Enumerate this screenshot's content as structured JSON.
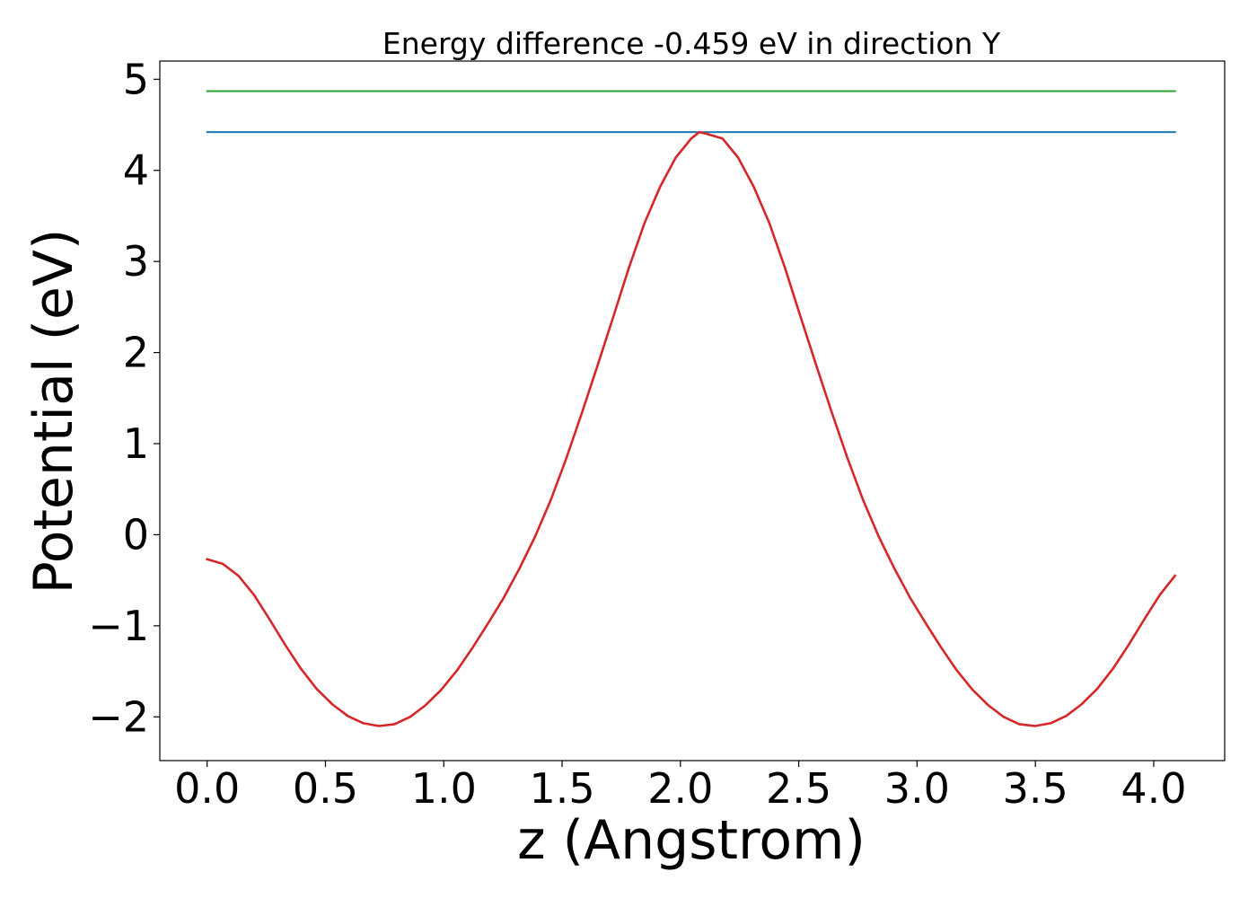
{
  "chart_data": {
    "type": "line",
    "title": "Energy difference -0.459 eV in direction Y",
    "xlabel": "z (Angstrom)",
    "ylabel": "Potential (eV)",
    "xlim": [
      -0.2,
      4.3
    ],
    "ylim": [
      -2.48,
      5.2
    ],
    "grid": false,
    "x_ticks": [
      {
        "value": 0.0,
        "label": "0.0"
      },
      {
        "value": 0.5,
        "label": "0.5"
      },
      {
        "value": 1.0,
        "label": "1.0"
      },
      {
        "value": 1.5,
        "label": "1.5"
      },
      {
        "value": 2.0,
        "label": "2.0"
      },
      {
        "value": 2.5,
        "label": "2.5"
      },
      {
        "value": 3.0,
        "label": "3.0"
      },
      {
        "value": 3.5,
        "label": "3.5"
      },
      {
        "value": 4.0,
        "label": "4.0"
      }
    ],
    "y_ticks": [
      {
        "value": -2,
        "label": "−2"
      },
      {
        "value": -1,
        "label": "−1"
      },
      {
        "value": 0,
        "label": "0"
      },
      {
        "value": 1,
        "label": "1"
      },
      {
        "value": 2,
        "label": "2"
      },
      {
        "value": 3,
        "label": "3"
      },
      {
        "value": 4,
        "label": "4"
      },
      {
        "value": 5,
        "label": "5"
      }
    ],
    "series": [
      {
        "color": "#2ca02c",
        "x": [
          0.0,
          4.09
        ],
        "values": [
          4.87,
          4.87
        ]
      },
      {
        "color": "#1f77b4",
        "x": [
          0.0,
          4.09
        ],
        "values": [
          4.42,
          4.42
        ]
      },
      {
        "color": "#d62728",
        "x": [
          0.0,
          0.066,
          0.132,
          0.198,
          0.264,
          0.33,
          0.396,
          0.462,
          0.528,
          0.594,
          0.66,
          0.726,
          0.792,
          0.858,
          0.924,
          0.99,
          1.056,
          1.122,
          1.188,
          1.254,
          1.32,
          1.386,
          1.452,
          1.518,
          1.584,
          1.65,
          1.716,
          1.782,
          1.848,
          1.914,
          1.98,
          2.046,
          2.08,
          2.112,
          2.178,
          2.244,
          2.31,
          2.376,
          2.442,
          2.508,
          2.574,
          2.64,
          2.706,
          2.772,
          2.838,
          2.904,
          2.97,
          3.036,
          3.102,
          3.168,
          3.234,
          3.3,
          3.366,
          3.432,
          3.498,
          3.564,
          3.63,
          3.696,
          3.762,
          3.828,
          3.894,
          3.96,
          4.026,
          4.09
        ],
        "values": [
          -0.27,
          -0.32,
          -0.45,
          -0.66,
          -0.93,
          -1.21,
          -1.47,
          -1.69,
          -1.86,
          -1.99,
          -2.07,
          -2.1,
          -2.08,
          -2.0,
          -1.87,
          -1.7,
          -1.49,
          -1.24,
          -0.97,
          -0.69,
          -0.37,
          -0.02,
          0.38,
          0.84,
          1.34,
          1.86,
          2.39,
          2.93,
          3.42,
          3.82,
          4.14,
          4.35,
          4.42,
          4.4,
          4.35,
          4.14,
          3.82,
          3.42,
          2.93,
          2.39,
          1.86,
          1.34,
          0.84,
          0.38,
          -0.02,
          -0.37,
          -0.69,
          -0.97,
          -1.24,
          -1.49,
          -1.7,
          -1.87,
          -2.0,
          -2.08,
          -2.1,
          -2.07,
          -1.99,
          -1.86,
          -1.69,
          -1.47,
          -1.21,
          -0.93,
          -0.66,
          -0.45
        ]
      }
    ]
  }
}
